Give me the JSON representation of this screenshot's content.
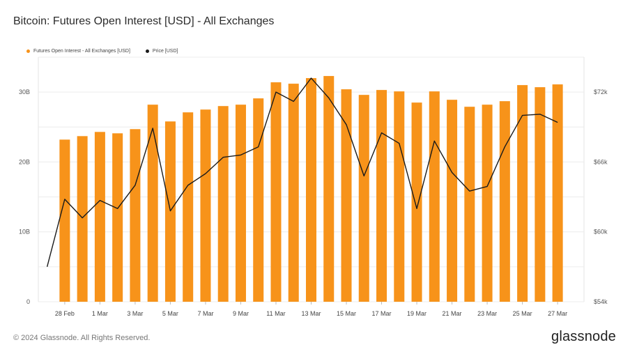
{
  "header": {
    "title": "Bitcoin: Futures Open Interest [USD] - All Exchanges"
  },
  "legend": {
    "oi_label": "Futures Open Interest - All Exchanges [USD]",
    "price_label": "Price [USD]"
  },
  "footer": {
    "copyright": "© 2024 Glassnode. All Rights Reserved.",
    "brand": "glassnode"
  },
  "colors": {
    "bar": "#f7931a",
    "line": "#1a1a1a",
    "grid": "#ececec"
  },
  "chart_data": {
    "type": "bar",
    "x": [
      "27 Feb",
      "28 Feb",
      "29 Feb",
      "1 Mar",
      "2 Mar",
      "3 Mar",
      "4 Mar",
      "5 Mar",
      "6 Mar",
      "7 Mar",
      "8 Mar",
      "9 Mar",
      "10 Mar",
      "11 Mar",
      "12 Mar",
      "13 Mar",
      "14 Mar",
      "15 Mar",
      "16 Mar",
      "17 Mar",
      "18 Mar",
      "19 Mar",
      "20 Mar",
      "21 Mar",
      "22 Mar",
      "23 Mar",
      "24 Mar",
      "25 Mar",
      "26 Mar",
      "27 Mar",
      "28 Mar"
    ],
    "series": [
      {
        "name": "Futures Open Interest - All Exchanges [USD]",
        "type": "bar",
        "axis": "left",
        "values": [
          null,
          23.2,
          23.7,
          24.3,
          24.1,
          24.7,
          28.2,
          25.8,
          27.1,
          27.5,
          28.0,
          28.2,
          29.1,
          31.4,
          31.2,
          32.0,
          32.3,
          30.4,
          29.6,
          30.3,
          30.1,
          28.5,
          30.1,
          28.9,
          27.9,
          28.2,
          28.7,
          31.0,
          30.7,
          31.1,
          null
        ]
      },
      {
        "name": "Price [USD]",
        "type": "line",
        "axis": "right",
        "values": [
          57000,
          62800,
          61200,
          62700,
          62000,
          64000,
          68900,
          61800,
          64000,
          65000,
          66400,
          66600,
          67300,
          72000,
          71200,
          73200,
          71500,
          69200,
          64800,
          68500,
          67600,
          62000,
          67800,
          65100,
          63500,
          63900,
          67300,
          70000,
          70100,
          69400,
          null
        ]
      }
    ],
    "x_tick_labels": [
      "28 Feb",
      "1 Mar",
      "3 Mar",
      "5 Mar",
      "7 Mar",
      "9 Mar",
      "11 Mar",
      "13 Mar",
      "15 Mar",
      "17 Mar",
      "19 Mar",
      "21 Mar",
      "23 Mar",
      "25 Mar",
      "27 Mar"
    ],
    "y_left": {
      "ticks": [
        0,
        10,
        20,
        30
      ],
      "tick_labels": [
        "0",
        "10B",
        "20B",
        "30B"
      ],
      "ylim": [
        0,
        35
      ]
    },
    "y_right": {
      "ticks": [
        54000,
        60000,
        66000,
        72000
      ],
      "tick_labels": [
        "$54k",
        "$60k",
        "$66k",
        "$72k"
      ],
      "ylim": [
        54000,
        75000
      ]
    },
    "grid": true,
    "legend_position": "top-left"
  }
}
